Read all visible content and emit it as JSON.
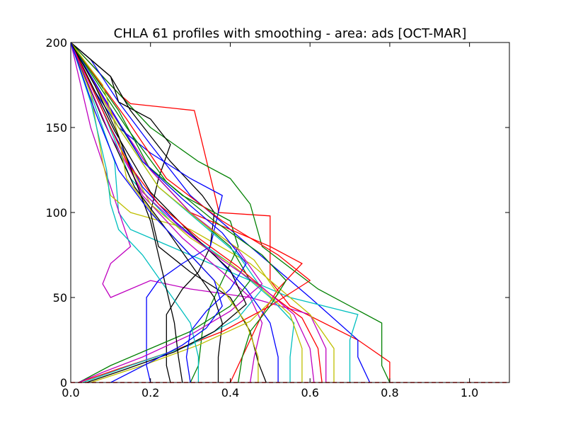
{
  "chart_data": {
    "type": "line",
    "title": "CHLA 61 profiles with smoothing - area: ads [OCT-MAR]",
    "xlabel": "",
    "ylabel": "",
    "xlim": [
      0.0,
      1.1
    ],
    "ylim": [
      0,
      200
    ],
    "x_ticks": [
      0.0,
      0.2,
      0.4,
      0.6,
      0.8,
      1.0
    ],
    "x_tick_labels": [
      "0.0",
      "0.2",
      "0.4",
      "0.6",
      "0.8",
      "1.0"
    ],
    "y_ticks": [
      0,
      50,
      100,
      150,
      200
    ],
    "y_tick_labels": [
      "0",
      "50",
      "100",
      "150",
      "200"
    ],
    "grid": false,
    "legend": "none",
    "colors": [
      "#0000ff",
      "#008000",
      "#ff0000",
      "#00bfbf",
      "#bf00bf",
      "#bfbf00",
      "#000000"
    ],
    "zero_line": {
      "style": "dashed",
      "color": "#ff0000",
      "value": 0
    },
    "series": [
      {
        "color": "#ff0000",
        "x": [
          0.8,
          0.8,
          0.72,
          0.55,
          0.5,
          0.5,
          0.37,
          0.37,
          0.31,
          0.15,
          0.12,
          0.08,
          0.0
        ],
        "y": [
          0,
          12,
          25,
          45,
          60,
          98,
          100,
          102,
          160,
          164,
          170,
          180,
          200
        ]
      },
      {
        "color": "#008000",
        "x": [
          0.8,
          0.78,
          0.78,
          0.62,
          0.48,
          0.45,
          0.4,
          0.32,
          0.2,
          0.1,
          0.0
        ],
        "y": [
          0,
          10,
          35,
          55,
          80,
          105,
          120,
          130,
          150,
          175,
          200
        ]
      },
      {
        "color": "#0000ff",
        "x": [
          0.75,
          0.72,
          0.72,
          0.6,
          0.45,
          0.3,
          0.2,
          0.12,
          0.05,
          0.0
        ],
        "y": [
          0,
          15,
          25,
          50,
          80,
          110,
          140,
          165,
          190,
          200
        ]
      },
      {
        "color": "#00bfbf",
        "x": [
          0.7,
          0.7,
          0.72,
          0.55,
          0.3,
          0.15,
          0.12,
          0.11,
          0.05,
          0.0
        ],
        "y": [
          0,
          25,
          40,
          50,
          75,
          90,
          100,
          130,
          170,
          200
        ]
      },
      {
        "color": "#bf00bf",
        "x": [
          0.64,
          0.64,
          0.6,
          0.45,
          0.3,
          0.2,
          0.1,
          0.08,
          0.1,
          0.15,
          0.05,
          0.0
        ],
        "y": [
          0,
          20,
          40,
          50,
          55,
          60,
          50,
          58,
          70,
          80,
          150,
          200
        ]
      },
      {
        "color": "#bfbf00",
        "x": [
          0.66,
          0.66,
          0.6,
          0.45,
          0.3,
          0.15,
          0.1,
          0.08,
          0.05,
          0.0
        ],
        "y": [
          0,
          20,
          40,
          70,
          90,
          100,
          110,
          130,
          170,
          200
        ]
      },
      {
        "color": "#000000",
        "x": [
          0.49,
          0.47,
          0.45,
          0.4,
          0.3,
          0.22,
          0.2,
          0.22,
          0.25,
          0.2,
          0.12,
          0.1,
          0.0
        ],
        "y": [
          0,
          12,
          30,
          50,
          65,
          80,
          100,
          120,
          140,
          155,
          165,
          180,
          200
        ]
      },
      {
        "color": "#000000",
        "x": [
          0.25,
          0.24,
          0.24,
          0.28,
          0.32,
          0.35,
          0.36,
          0.33,
          0.25,
          0.2,
          0.15,
          0.1,
          0.0
        ],
        "y": [
          0,
          10,
          40,
          55,
          65,
          80,
          100,
          110,
          130,
          145,
          160,
          180,
          200
        ]
      },
      {
        "color": "#0000ff",
        "x": [
          0.2,
          0.19,
          0.19,
          0.22,
          0.28,
          0.35,
          0.38,
          0.3,
          0.2,
          0.12,
          0.05,
          0.0
        ],
        "y": [
          0,
          10,
          50,
          60,
          70,
          80,
          110,
          120,
          135,
          150,
          175,
          200
        ]
      },
      {
        "color": "#008000",
        "x": [
          0.3,
          0.32,
          0.33,
          0.35,
          0.38,
          0.42,
          0.4,
          0.28,
          0.18,
          0.1,
          0.0
        ],
        "y": [
          0,
          10,
          30,
          45,
          60,
          80,
          95,
          110,
          130,
          160,
          200
        ]
      },
      {
        "color": "#ff0000",
        "x": [
          0.4,
          0.42,
          0.45,
          0.48,
          0.52,
          0.58,
          0.5,
          0.3,
          0.2,
          0.1,
          0.0
        ],
        "y": [
          0,
          10,
          25,
          40,
          55,
          70,
          80,
          100,
          125,
          160,
          200
        ]
      },
      {
        "color": "#00bfbf",
        "x": [
          0.55,
          0.55,
          0.56,
          0.5,
          0.4,
          0.25,
          0.15,
          0.08,
          0.0
        ],
        "y": [
          0,
          15,
          35,
          50,
          70,
          95,
          120,
          160,
          200
        ]
      },
      {
        "color": "#bf00bf",
        "x": [
          0.45,
          0.46,
          0.48,
          0.45,
          0.38,
          0.28,
          0.18,
          0.1,
          0.0
        ],
        "y": [
          0,
          15,
          35,
          50,
          65,
          85,
          110,
          150,
          200
        ]
      },
      {
        "color": "#bfbf00",
        "x": [
          0.58,
          0.58,
          0.55,
          0.48,
          0.4,
          0.3,
          0.2,
          0.12,
          0.0
        ],
        "y": [
          0,
          20,
          40,
          55,
          70,
          85,
          105,
          140,
          200
        ]
      },
      {
        "color": "#000000",
        "x": [
          0.37,
          0.37,
          0.38,
          0.36,
          0.3,
          0.24,
          0.16,
          0.08,
          0.0
        ],
        "y": [
          0,
          15,
          35,
          50,
          70,
          90,
          115,
          155,
          200
        ]
      },
      {
        "color": "#0000ff",
        "x": [
          0.52,
          0.52,
          0.5,
          0.44,
          0.36,
          0.26,
          0.18,
          0.1,
          0.0
        ],
        "y": [
          0,
          15,
          35,
          55,
          75,
          95,
          115,
          150,
          200
        ]
      },
      {
        "color": "#008000",
        "x": [
          0.02,
          0.1,
          0.2,
          0.3,
          0.4,
          0.45,
          0.4,
          0.3,
          0.2,
          0.12,
          0.0
        ],
        "y": [
          0,
          10,
          20,
          30,
          45,
          60,
          80,
          100,
          125,
          160,
          200
        ]
      },
      {
        "color": "#ff0000",
        "x": [
          0.02,
          0.12,
          0.25,
          0.38,
          0.5,
          0.6,
          0.52,
          0.38,
          0.24,
          0.14,
          0.0
        ],
        "y": [
          0,
          8,
          18,
          30,
          45,
          60,
          75,
          95,
          120,
          155,
          200
        ]
      },
      {
        "color": "#00bfbf",
        "x": [
          0.03,
          0.15,
          0.3,
          0.42,
          0.48,
          0.42,
          0.32,
          0.22,
          0.12,
          0.0
        ],
        "y": [
          0,
          10,
          22,
          38,
          55,
          75,
          95,
          115,
          150,
          200
        ]
      },
      {
        "color": "#bf00bf",
        "x": [
          0.02,
          0.08,
          0.18,
          0.3,
          0.4,
          0.48,
          0.42,
          0.3,
          0.2,
          0.1,
          0.0
        ],
        "y": [
          0,
          6,
          15,
          28,
          42,
          58,
          78,
          100,
          125,
          160,
          200
        ]
      },
      {
        "color": "#bfbf00",
        "x": [
          0.05,
          0.18,
          0.32,
          0.45,
          0.52,
          0.46,
          0.34,
          0.22,
          0.12,
          0.0
        ],
        "y": [
          0,
          10,
          22,
          36,
          52,
          72,
          92,
          115,
          150,
          200
        ]
      },
      {
        "color": "#000000",
        "x": [
          0.04,
          0.14,
          0.26,
          0.36,
          0.44,
          0.4,
          0.3,
          0.2,
          0.11,
          0.0
        ],
        "y": [
          0,
          8,
          18,
          30,
          46,
          66,
          88,
          112,
          148,
          200
        ]
      },
      {
        "color": "#0000ff",
        "x": [
          0.3,
          0.29,
          0.3,
          0.34,
          0.4,
          0.44,
          0.38,
          0.28,
          0.18,
          0.09,
          0.0
        ],
        "y": [
          0,
          15,
          30,
          42,
          55,
          70,
          88,
          108,
          130,
          165,
          200
        ]
      },
      {
        "color": "#008000",
        "x": [
          0.42,
          0.43,
          0.45,
          0.5,
          0.54,
          0.48,
          0.36,
          0.24,
          0.14,
          0.0
        ],
        "y": [
          0,
          15,
          30,
          45,
          60,
          75,
          95,
          118,
          150,
          200
        ]
      },
      {
        "color": "#00bfbf",
        "x": [
          0.32,
          0.32,
          0.3,
          0.24,
          0.18,
          0.12,
          0.1,
          0.09,
          0.05,
          0.0
        ],
        "y": [
          0,
          15,
          35,
          55,
          75,
          90,
          105,
          125,
          165,
          200
        ]
      },
      {
        "color": "#ff0000",
        "x": [
          0.63,
          0.62,
          0.58,
          0.5,
          0.42,
          0.32,
          0.22,
          0.14,
          0.06,
          0.0
        ],
        "y": [
          0,
          20,
          38,
          52,
          68,
          85,
          105,
          130,
          170,
          200
        ]
      },
      {
        "color": "#bf00bf",
        "x": [
          0.61,
          0.6,
          0.56,
          0.48,
          0.38,
          0.28,
          0.18,
          0.1,
          0.0
        ],
        "y": [
          0,
          20,
          40,
          56,
          72,
          90,
          112,
          145,
          200
        ]
      },
      {
        "color": "#bfbf00",
        "x": [
          0.47,
          0.47,
          0.44,
          0.38,
          0.3,
          0.22,
          0.14,
          0.12,
          0.08,
          0.0
        ],
        "y": [
          0,
          15,
          35,
          55,
          75,
          95,
          120,
          145,
          175,
          200
        ]
      },
      {
        "color": "#000000",
        "x": [
          0.28,
          0.27,
          0.26,
          0.24,
          0.22,
          0.2,
          0.16,
          0.12,
          0.06,
          0.0
        ],
        "y": [
          0,
          15,
          35,
          55,
          75,
          95,
          120,
          145,
          175,
          200
        ]
      },
      {
        "color": "#0000ff",
        "x": [
          0.1,
          0.2,
          0.28,
          0.34,
          0.38,
          0.36,
          0.28,
          0.2,
          0.12,
          0.06,
          0.0
        ],
        "y": [
          0,
          12,
          22,
          32,
          45,
          60,
          80,
          100,
          125,
          160,
          200
        ]
      }
    ]
  }
}
